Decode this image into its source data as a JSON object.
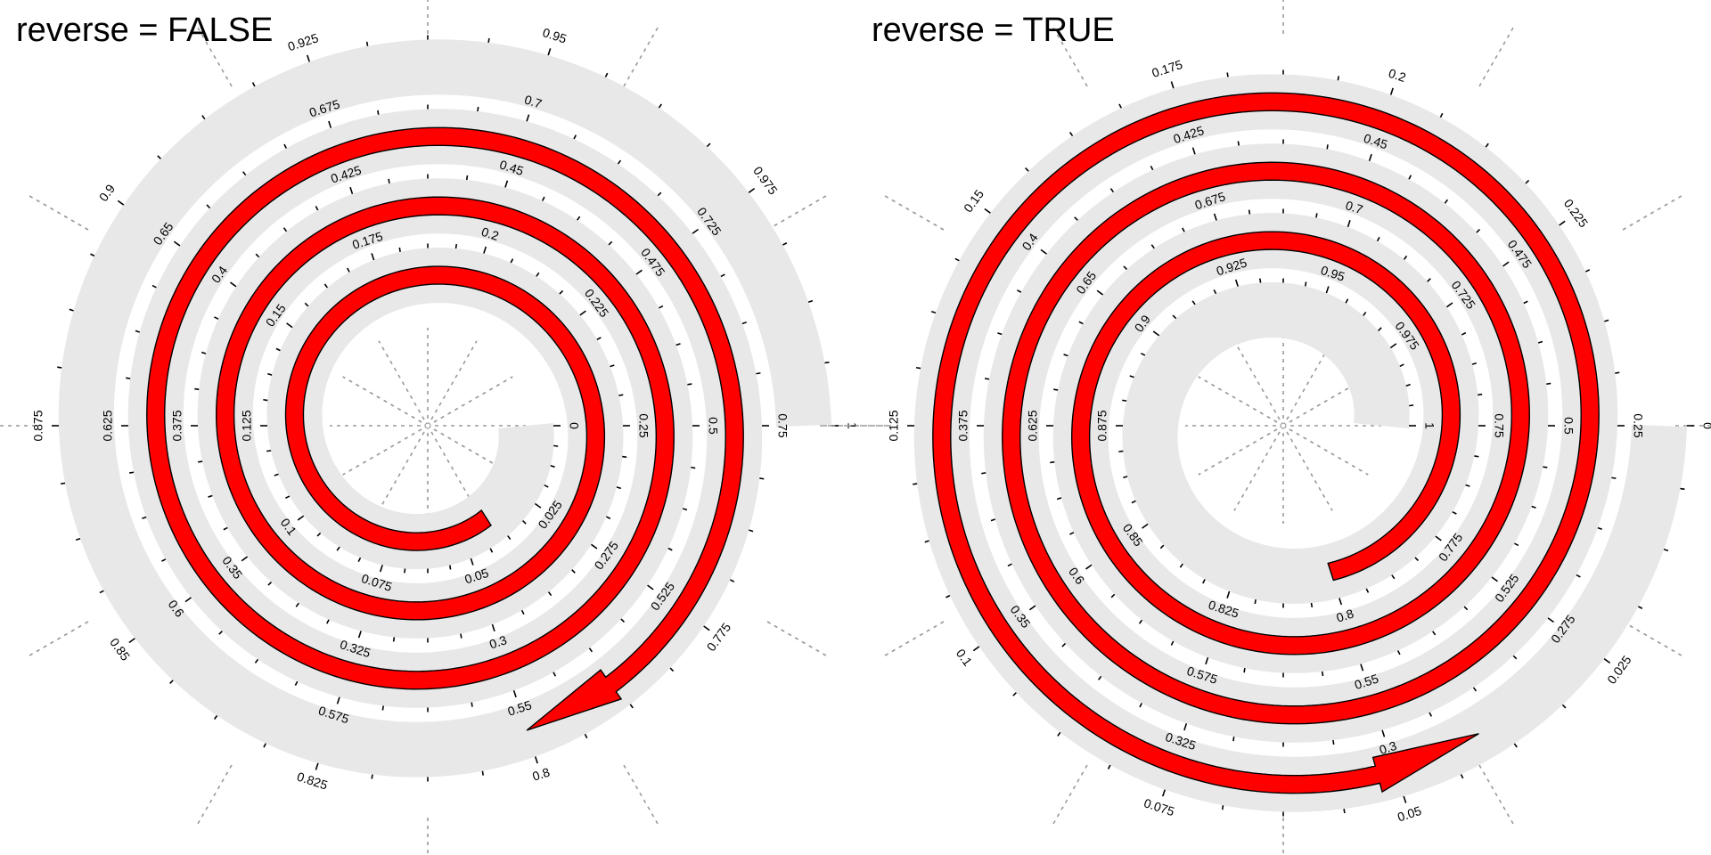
{
  "chart_data": [
    {
      "type": "spiral",
      "title": "reverse = FALSE",
      "reverse": false,
      "domain": [
        0,
        1
      ],
      "turns": 4,
      "tick_step": 0.025,
      "tick_labels": [
        "0",
        "0.025",
        "0.05",
        "0.075",
        "0.1",
        "0.125",
        "0.15",
        "0.175",
        "0.2",
        "0.225",
        "0.25",
        "0.275",
        "0.3",
        "0.325",
        "0.35",
        "0.375",
        "0.4",
        "0.425",
        "0.45",
        "0.475",
        "0.5",
        "0.525",
        "0.55",
        "0.575",
        "0.6",
        "0.625",
        "0.65",
        "0.675",
        "0.7",
        "0.725",
        "0.75",
        "0.775",
        "0.8",
        "0.825",
        "0.85",
        "0.875",
        "0.9",
        "0.925",
        "0.95",
        "0.975",
        "1"
      ],
      "arrow": {
        "from": 0.04,
        "to": 0.8,
        "fill": "#ff0000"
      },
      "track_color": "#e8e8e8"
    },
    {
      "type": "spiral",
      "title": "reverse = TRUE",
      "reverse": true,
      "domain": [
        0,
        1
      ],
      "turns": 4,
      "tick_step": 0.025,
      "tick_labels": [
        "1",
        "0.975",
        "0.95",
        "0.925",
        "0.9",
        "0.875",
        "0.85",
        "0.825",
        "0.8",
        "0.775",
        "0.75",
        "0.725",
        "0.7",
        "0.675",
        "0.65",
        "0.625",
        "0.6",
        "0.575",
        "0.55",
        "0.525",
        "0.5",
        "0.475",
        "0.45",
        "0.425",
        "0.4",
        "0.375",
        "0.35",
        "0.325",
        "0.3",
        "0.275",
        "0.25",
        "0.225",
        "0.2",
        "0.175",
        "0.15",
        "0.125",
        "0.1",
        "0.075",
        "0.05",
        "0.025",
        "0"
      ],
      "arrow": {
        "from": 0.2,
        "to": 0.96,
        "fill": "#ff0000"
      },
      "track_color": "#e8e8e8"
    }
  ]
}
